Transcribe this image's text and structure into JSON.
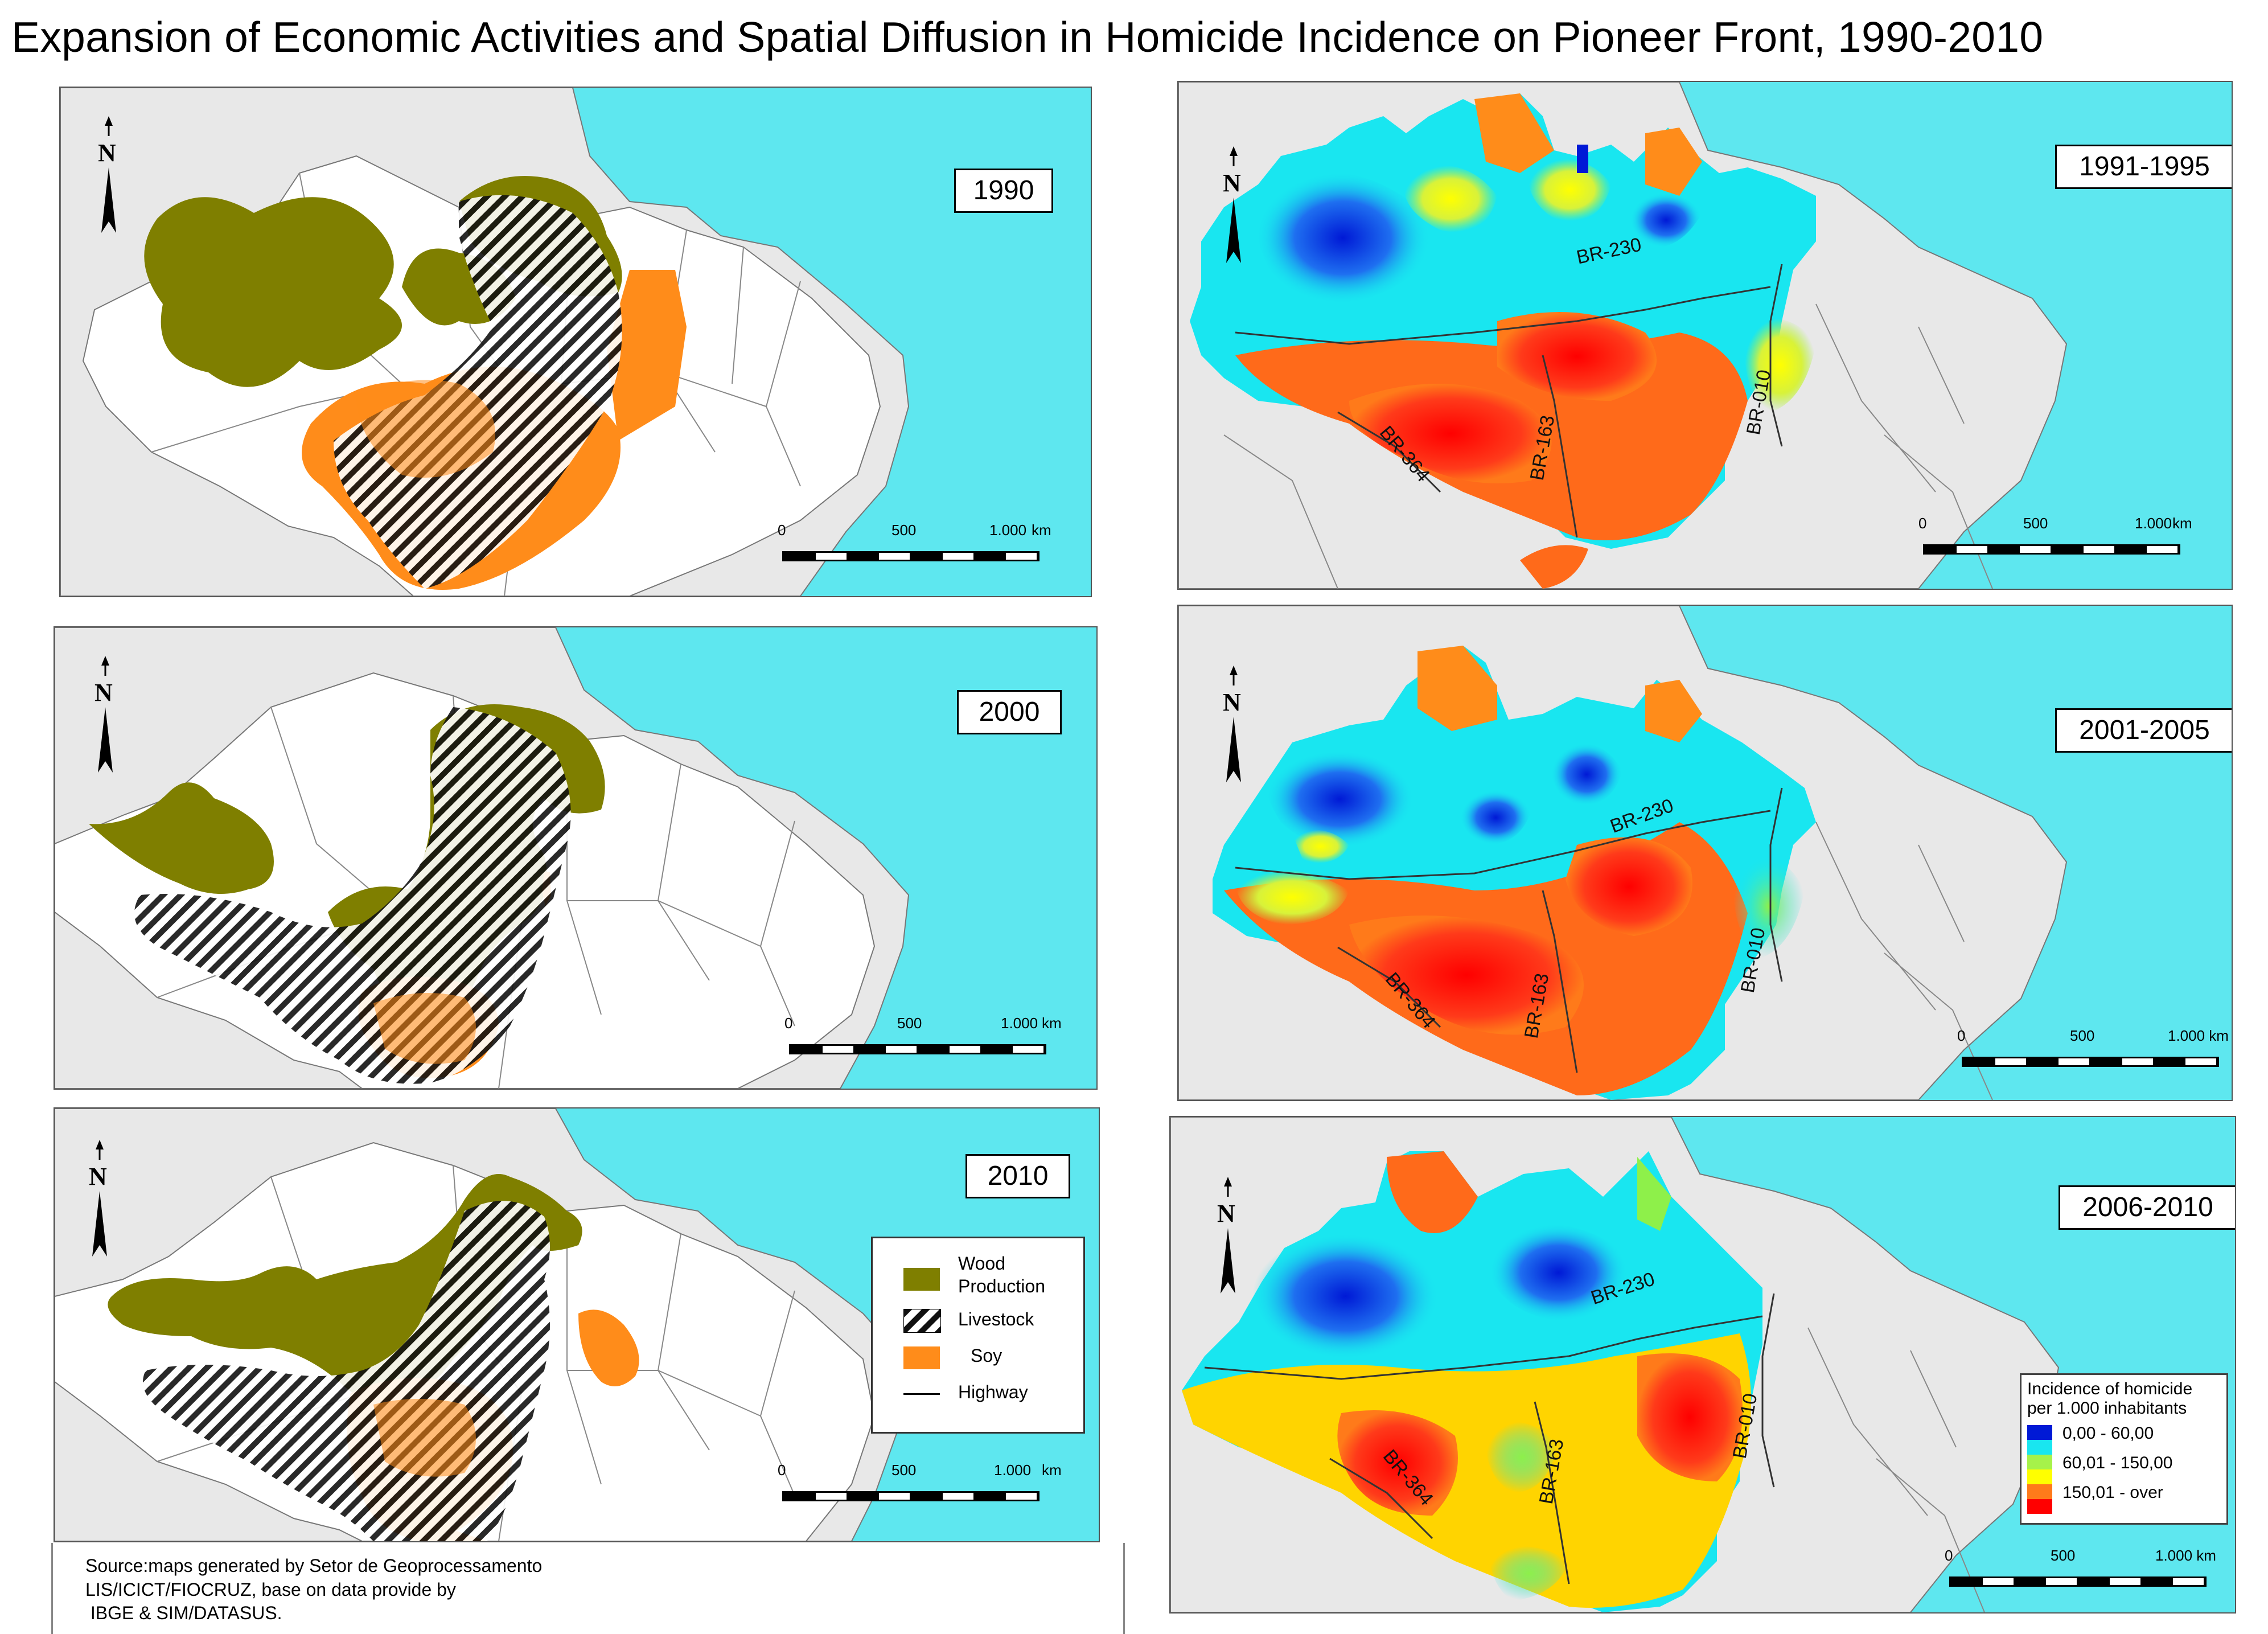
{
  "title": "Expansion of Economic Activities and Spatial Diffusion in Homicide Incidence on Pioneer  Front, 1990-2010",
  "north_label": "N",
  "scale_bar": {
    "zero": "0",
    "mid": "500",
    "end": "1.000",
    "unit": "km",
    "end_with_unit": "1.000 km"
  },
  "left_panels": [
    {
      "year": "1990"
    },
    {
      "year": "2000"
    },
    {
      "year": "2010"
    }
  ],
  "right_panels": [
    {
      "period": "1991-1995"
    },
    {
      "period": "2001-2005"
    },
    {
      "period": "2006-2010"
    }
  ],
  "highways": [
    "BR-230",
    "BR-010",
    "BR-364",
    "BR-163"
  ],
  "activity_legend": {
    "items": [
      {
        "label_1": "Wood",
        "label_2": "Production",
        "color": "#7f7f00"
      },
      {
        "label": "Livestock",
        "pattern": "hatched"
      },
      {
        "label": "Soy",
        "color": "#ff8c1a"
      },
      {
        "label": "Highway"
      }
    ]
  },
  "incidence_legend": {
    "title_1": "Incidence of homicide",
    "title_2": "per 1.000 inhabitants",
    "classes": [
      {
        "label": "0,00 - 60,00",
        "colors": [
          "#0019d6",
          "#19e6f0"
        ]
      },
      {
        "label": "60,01 - 150,00",
        "colors": [
          "#a6f24a",
          "#ffff00"
        ]
      },
      {
        "label": "150,01 - over",
        "colors": [
          "#ff7a1a",
          "#ff0000"
        ]
      }
    ]
  },
  "source": {
    "line1": "Source:maps generated by Setor de Geoprocessamento",
    "line2": "LIS/ICICT/FIOCRUZ, base on data provide by",
    "line3": " IBGE & SIM/DATASUS."
  },
  "colors": {
    "ocean": "#5ee7ef",
    "land": "#e8e8e8",
    "brazil": "#ffffff",
    "wood": "#7f7f00",
    "soy": "#ff8c1a"
  }
}
